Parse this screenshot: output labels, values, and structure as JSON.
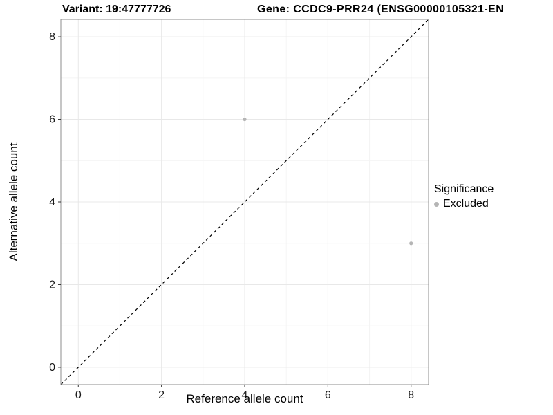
{
  "chart_data": {
    "type": "scatter",
    "title_left": "Variant: 19:47777726",
    "title_right": "Gene: CCDC9-PRR24 (ENSG00000105321-EN",
    "xlabel": "Reference allele count",
    "ylabel": "Alternative allele count",
    "xlim": [
      -0.42,
      8.42
    ],
    "ylim": [
      -0.42,
      8.42
    ],
    "xticks": [
      0,
      2,
      4,
      6,
      8
    ],
    "yticks": [
      0,
      2,
      4,
      6,
      8
    ],
    "minor_xticks": [
      1,
      3,
      5,
      7
    ],
    "minor_yticks": [
      1,
      3,
      5,
      7
    ],
    "grid": true,
    "points": [
      {
        "x": 4,
        "y": 6,
        "significance": "Excluded"
      },
      {
        "x": 8,
        "y": 3,
        "significance": "Excluded"
      }
    ],
    "point_color": "#b5b5b5",
    "grid_major_color": "#e8e8e8",
    "grid_minor_color": "#f4f4f4",
    "panel_border_color": "#8c8c8c",
    "tick_mark_color": "#333333",
    "tick_label_color": "#1a1a1a",
    "identity_line": {
      "style": "dashed",
      "color": "#000000"
    },
    "legend": {
      "title": "Significance",
      "position": "right",
      "entries": [
        {
          "label": "Excluded",
          "color": "#b5b5b5"
        }
      ]
    }
  }
}
